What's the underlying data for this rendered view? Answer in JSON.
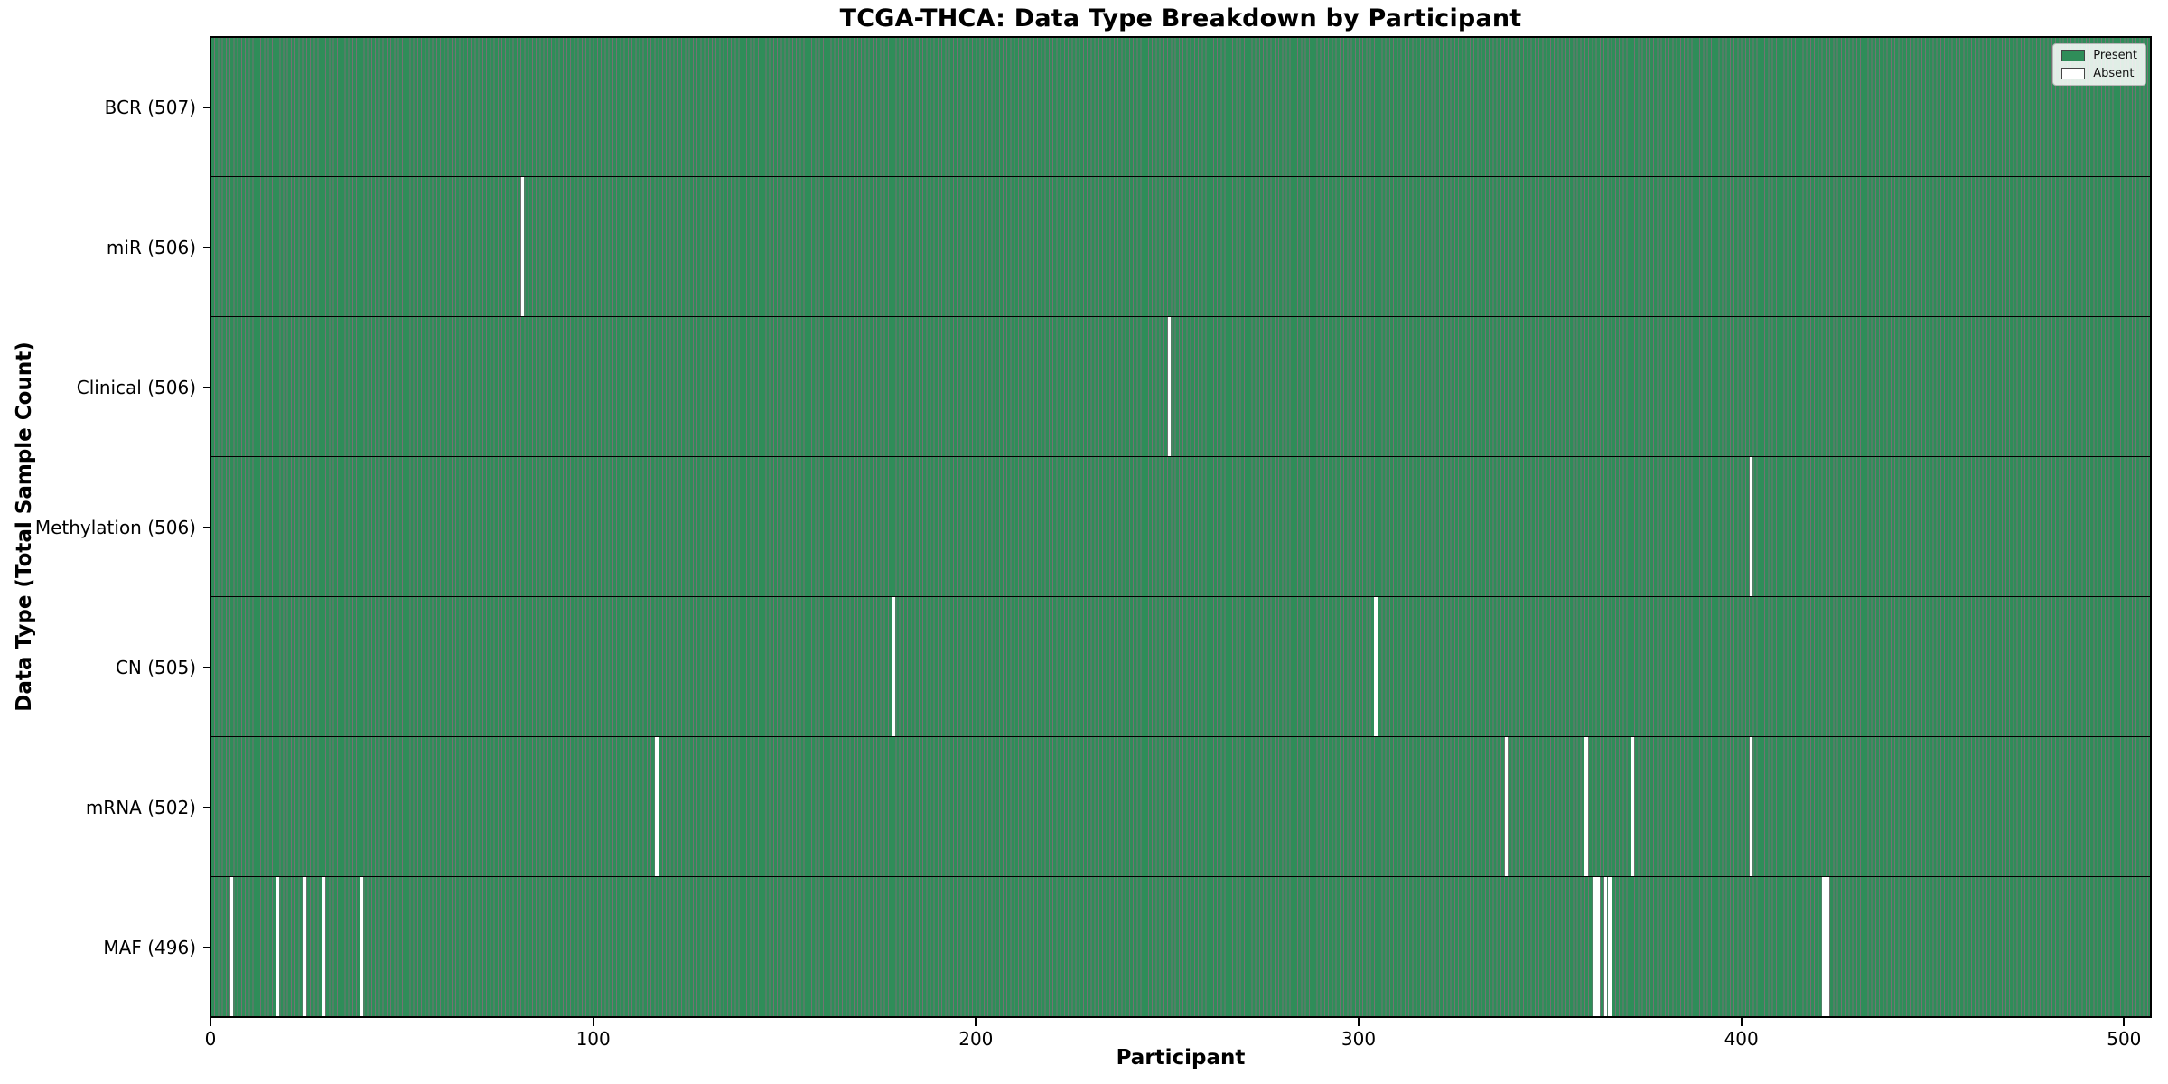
{
  "chart_data": {
    "type": "heatmap",
    "title": "TCGA-THCA: Data Type Breakdown by Participant",
    "xlabel": "Participant",
    "ylabel": "Data Type (Total Sample Count)",
    "total_participants": 507,
    "xlim": [
      0,
      507
    ],
    "x_ticks": [
      0,
      100,
      200,
      300,
      400,
      500
    ],
    "x_tick_labels": [
      "0",
      "100",
      "200",
      "300",
      "400",
      "500"
    ],
    "grid": false,
    "colors": {
      "present": "#2f8d59",
      "absent": "#ffffff",
      "cell_edge": "rgba(0,0,0,0.55)",
      "row_divider": "#000000",
      "axis": "#000000",
      "legend_border": "#b5b5b5"
    },
    "legend": {
      "position": "upper right",
      "entries": [
        {
          "label": "Present",
          "color": "#2f8d59"
        },
        {
          "label": "Absent",
          "color": "#ffffff"
        }
      ]
    },
    "rows": [
      {
        "name": "bcr",
        "label": "BCR (507)",
        "present_count": 507,
        "absent_participants": []
      },
      {
        "name": "mir",
        "label": "miR (506)",
        "present_count": 506,
        "absent_participants": [
          81
        ]
      },
      {
        "name": "clinical",
        "label": "Clinical (506)",
        "present_count": 506,
        "absent_participants": [
          250
        ]
      },
      {
        "name": "methylation",
        "label": "Methylation (506)",
        "present_count": 506,
        "absent_participants": [
          402
        ]
      },
      {
        "name": "cn",
        "label": "CN (505)",
        "present_count": 505,
        "absent_participants": [
          178,
          304
        ]
      },
      {
        "name": "mrna",
        "label": "mRNA (502)",
        "present_count": 502,
        "absent_participants": [
          116,
          338,
          359,
          371,
          402
        ]
      },
      {
        "name": "maf",
        "label": "MAF (496)",
        "present_count": 496,
        "absent_participants": [
          5,
          17,
          24,
          29,
          39,
          361,
          362,
          364,
          365,
          421,
          422
        ]
      }
    ]
  }
}
